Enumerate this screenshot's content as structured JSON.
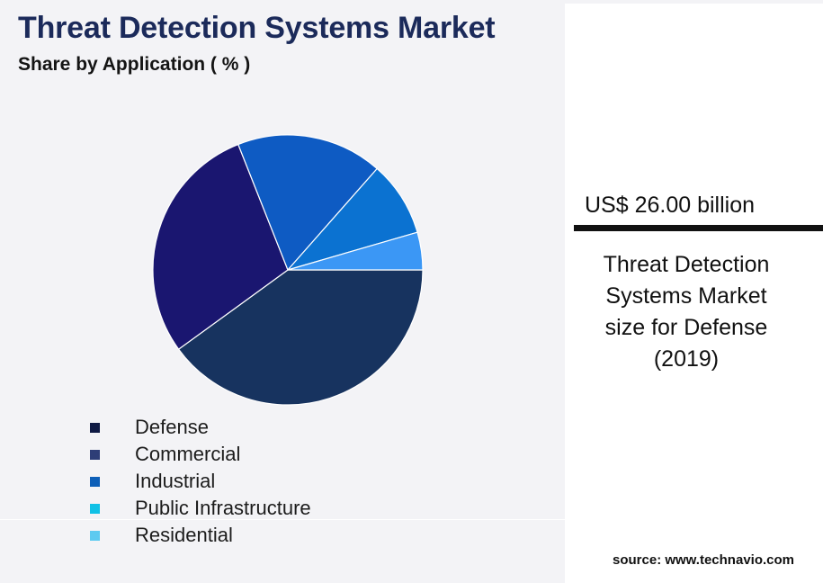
{
  "header": {
    "title": "Threat Detection Systems Market",
    "subtitle": "Share by Application ( % )"
  },
  "chart_data": {
    "type": "pie",
    "categories": [
      "Defense",
      "Commercial",
      "Industrial",
      "Public Infrastructure",
      "Residential"
    ],
    "values": [
      40.0,
      29.0,
      17.5,
      9.0,
      4.5
    ],
    "unit": "%",
    "legend_placement": "bottom-left",
    "slice_colors": [
      "#17335f",
      "#1a1670",
      "#0e5bc3",
      "#0b72d1",
      "#3b97f5"
    ],
    "legend_colors": [
      "#0f1a44",
      "#2e3e77",
      "#0d5fb8",
      "#11c1e6",
      "#5dcaf0"
    ]
  },
  "side_panel": {
    "stat_value": "US$ 26.00 billion",
    "stat_caption_lines": [
      "Threat Detection",
      "Systems Market",
      "size for Defense",
      "(2019)"
    ],
    "source": "source: www.technavio.com"
  }
}
